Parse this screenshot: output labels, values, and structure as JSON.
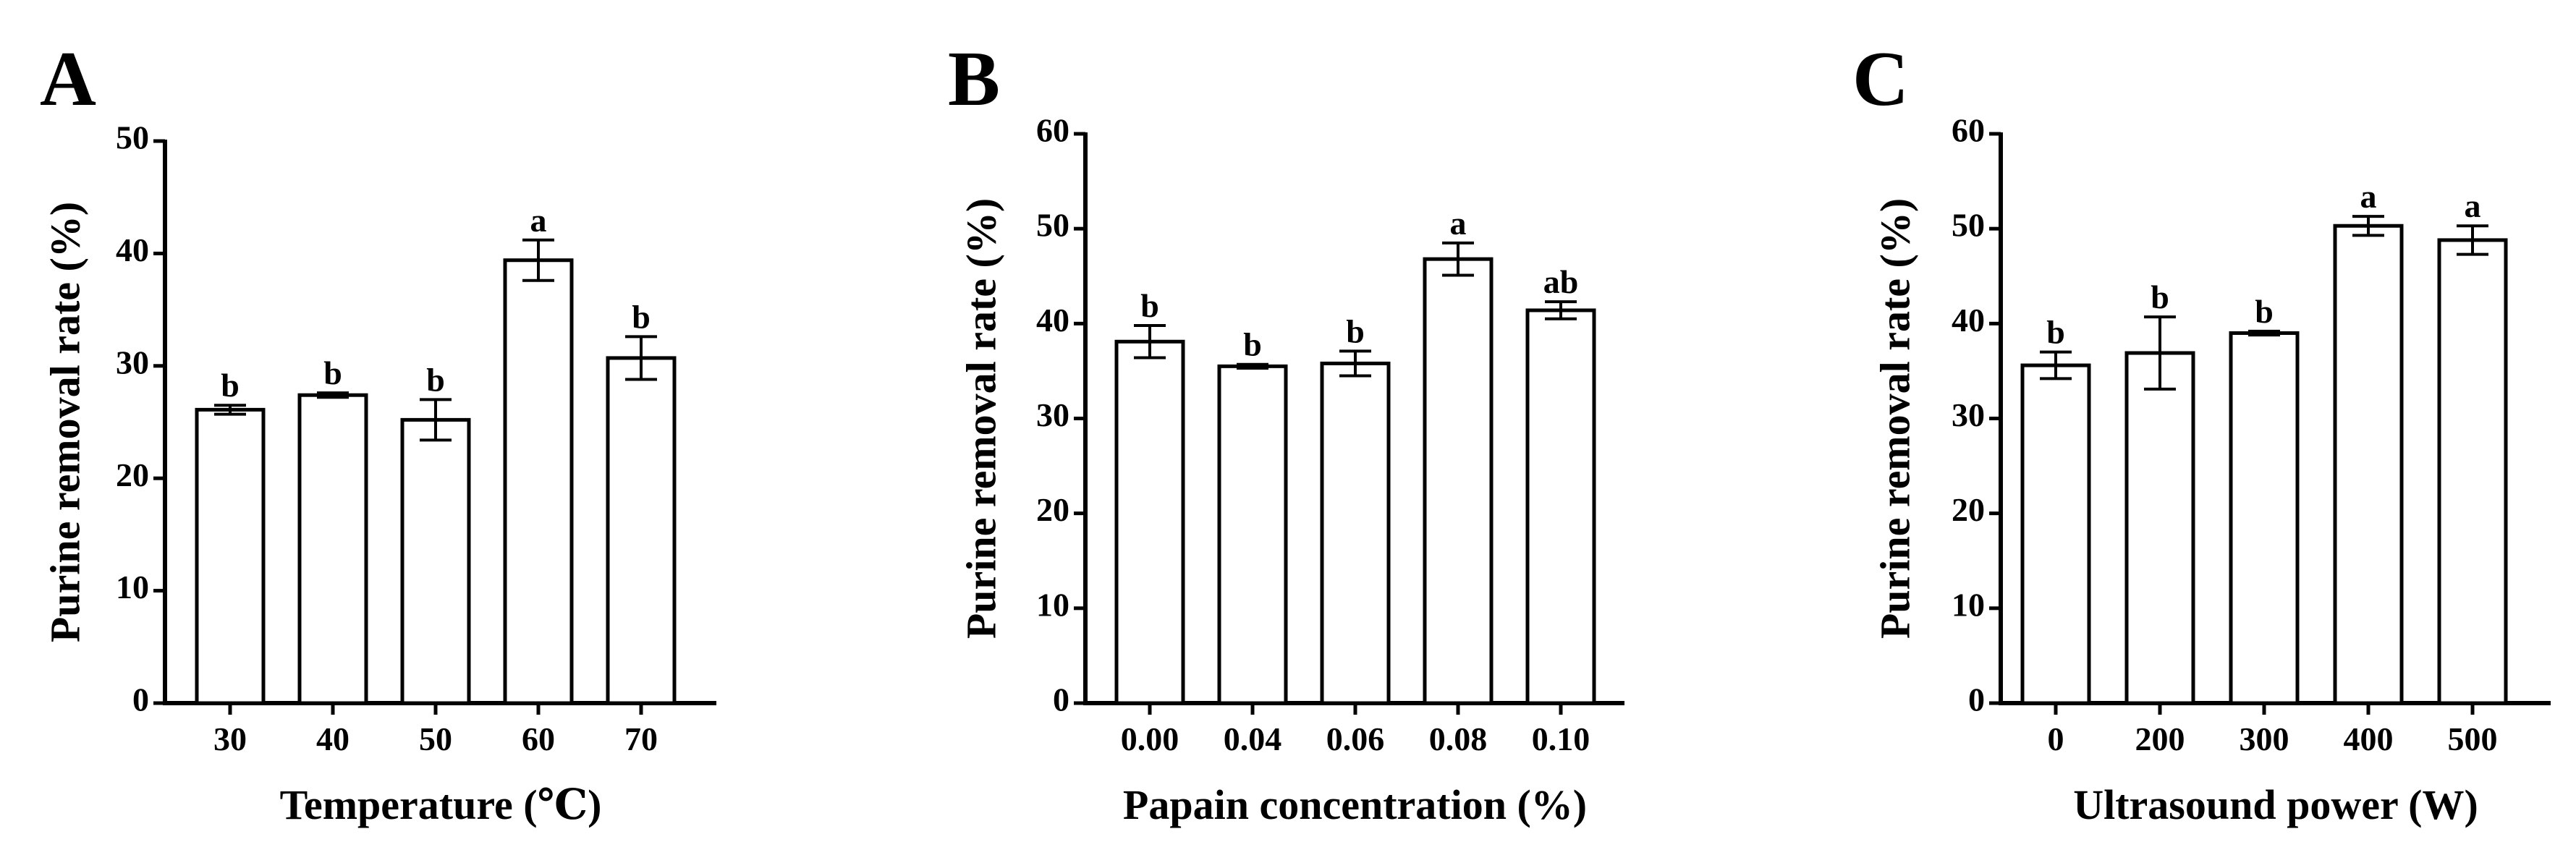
{
  "colors": {
    "ink": "#000000",
    "bar_fill": "#ffffff",
    "background": "#ffffff"
  },
  "chart_data": [
    {
      "type": "bar",
      "panel_label": "A",
      "xlabel": "Temperature (℃)",
      "ylabel": "Purine removal rate (%)",
      "ylim": [
        0,
        50
      ],
      "yticks": [
        0,
        10,
        20,
        30,
        40,
        50
      ],
      "categories": [
        "30",
        "40",
        "50",
        "60",
        "70"
      ],
      "values": [
        26.1,
        27.4,
        25.2,
        39.4,
        30.7
      ],
      "errors": [
        0.4,
        0.2,
        1.8,
        1.8,
        1.9
      ],
      "significance": [
        "b",
        "b",
        "b",
        "a",
        "b"
      ]
    },
    {
      "type": "bar",
      "panel_label": "B",
      "xlabel": "Papain concentration (%)",
      "ylabel": "Purine removal rate (%)",
      "ylim": [
        0,
        60
      ],
      "yticks": [
        0,
        10,
        20,
        30,
        40,
        50,
        60
      ],
      "categories": [
        "0.00",
        "0.04",
        "0.06",
        "0.08",
        "0.10"
      ],
      "values": [
        38.1,
        35.5,
        35.8,
        46.8,
        41.4
      ],
      "errors": [
        1.7,
        0.2,
        1.3,
        1.7,
        0.9
      ],
      "significance": [
        "b",
        "b",
        "b",
        "a",
        "ab"
      ]
    },
    {
      "type": "bar",
      "panel_label": "C",
      "xlabel": "Ultrasound power (W)",
      "ylabel": "Purine removal rate (%)",
      "ylim": [
        0,
        60
      ],
      "yticks": [
        0,
        10,
        20,
        30,
        40,
        50,
        60
      ],
      "categories": [
        "0",
        "200",
        "300",
        "400",
        "500"
      ],
      "values": [
        35.6,
        36.9,
        39.0,
        50.3,
        48.8
      ],
      "errors": [
        1.4,
        3.8,
        0.2,
        1.0,
        1.5
      ],
      "significance": [
        "b",
        "b",
        "b",
        "a",
        "a"
      ]
    }
  ]
}
